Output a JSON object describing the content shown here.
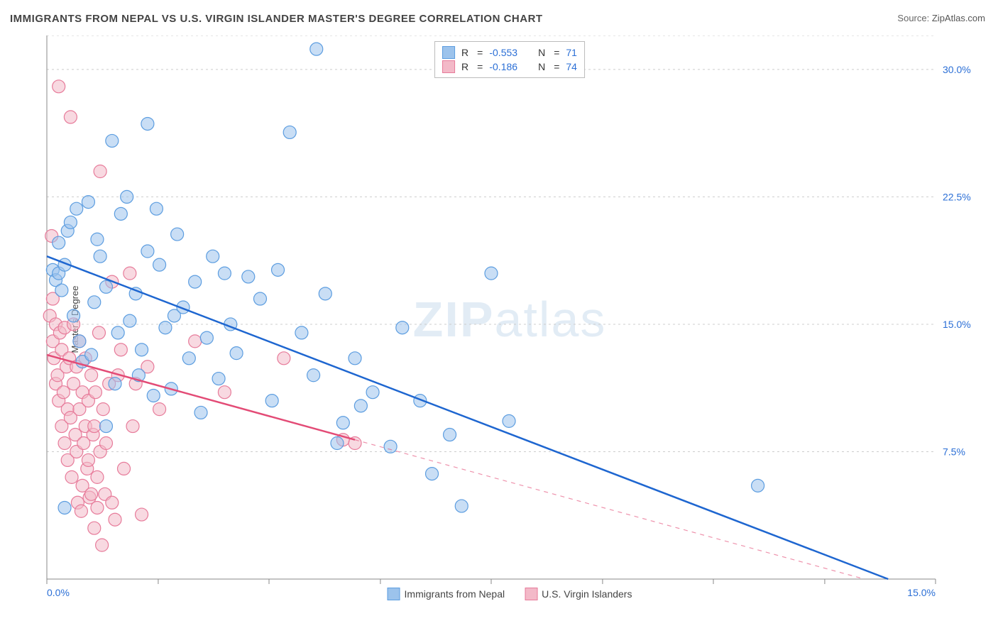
{
  "title": "IMMIGRANTS FROM NEPAL VS U.S. VIRGIN ISLANDER MASTER'S DEGREE CORRELATION CHART",
  "source_label": "Source:",
  "source_value": "ZipAtlas.com",
  "ylabel": "Master's Degree",
  "watermark_bold": "ZIP",
  "watermark_rest": "atlas",
  "chart": {
    "type": "scatter",
    "background_color": "#ffffff",
    "grid_color": "#cccccc",
    "axis_color": "#888888",
    "tick_color": "#888888",
    "xlim": [
      0,
      15
    ],
    "ylim": [
      0,
      32
    ],
    "x_ticks": [
      0.0,
      1.88,
      3.75,
      5.63,
      7.5,
      9.38,
      11.25,
      13.13,
      15.0
    ],
    "x_tick_labels_shown": {
      "0": "0.0%",
      "15": "15.0%"
    },
    "y_ticks": [
      7.5,
      15.0,
      22.5,
      30.0
    ],
    "y_tick_labels": [
      "7.5%",
      "15.0%",
      "22.5%",
      "30.0%"
    ],
    "x_label_color": "#2b6fd6",
    "y_label_color": "#2b6fd6",
    "label_fontsize": 14,
    "point_radius": 9,
    "point_opacity": 0.55,
    "line_width": 2.5,
    "series": [
      {
        "name": "Immigrants from Nepal",
        "color_fill": "#9cc3ec",
        "color_stroke": "#5c9de0",
        "line_color": "#1e66d0",
        "R": "-0.553",
        "N": "71",
        "regression": {
          "x1": 0,
          "y1": 19.0,
          "x2": 14.2,
          "y2": 0.0
        },
        "dashed_ext": null,
        "points": [
          [
            0.1,
            18.2
          ],
          [
            0.15,
            17.6
          ],
          [
            0.2,
            18.0
          ],
          [
            0.2,
            19.8
          ],
          [
            0.25,
            17.0
          ],
          [
            0.3,
            18.5
          ],
          [
            0.3,
            4.2
          ],
          [
            0.35,
            20.5
          ],
          [
            0.4,
            21.0
          ],
          [
            0.45,
            15.5
          ],
          [
            0.5,
            21.8
          ],
          [
            0.55,
            14.0
          ],
          [
            0.6,
            12.8
          ],
          [
            0.7,
            22.2
          ],
          [
            0.75,
            13.2
          ],
          [
            0.8,
            16.3
          ],
          [
            0.85,
            20.0
          ],
          [
            0.9,
            19.0
          ],
          [
            1.0,
            17.2
          ],
          [
            1.0,
            9.0
          ],
          [
            1.1,
            25.8
          ],
          [
            1.15,
            11.5
          ],
          [
            1.2,
            14.5
          ],
          [
            1.25,
            21.5
          ],
          [
            1.35,
            22.5
          ],
          [
            1.4,
            15.2
          ],
          [
            1.5,
            16.8
          ],
          [
            1.55,
            12.0
          ],
          [
            1.6,
            13.5
          ],
          [
            1.7,
            19.3
          ],
          [
            1.7,
            26.8
          ],
          [
            1.8,
            10.8
          ],
          [
            1.85,
            21.8
          ],
          [
            1.9,
            18.5
          ],
          [
            2.0,
            14.8
          ],
          [
            2.1,
            11.2
          ],
          [
            2.15,
            15.5
          ],
          [
            2.2,
            20.3
          ],
          [
            2.3,
            16.0
          ],
          [
            2.4,
            13.0
          ],
          [
            2.5,
            17.5
          ],
          [
            2.6,
            9.8
          ],
          [
            2.7,
            14.2
          ],
          [
            2.8,
            19.0
          ],
          [
            2.9,
            11.8
          ],
          [
            3.0,
            18.0
          ],
          [
            3.1,
            15.0
          ],
          [
            3.2,
            13.3
          ],
          [
            3.4,
            17.8
          ],
          [
            3.6,
            16.5
          ],
          [
            3.8,
            10.5
          ],
          [
            3.9,
            18.2
          ],
          [
            4.1,
            26.3
          ],
          [
            4.3,
            14.5
          ],
          [
            4.5,
            12.0
          ],
          [
            4.55,
            31.2
          ],
          [
            4.7,
            16.8
          ],
          [
            4.9,
            8.0
          ],
          [
            5.0,
            9.2
          ],
          [
            5.2,
            13.0
          ],
          [
            5.3,
            10.2
          ],
          [
            5.5,
            11.0
          ],
          [
            5.8,
            7.8
          ],
          [
            6.0,
            14.8
          ],
          [
            6.3,
            10.5
          ],
          [
            6.5,
            6.2
          ],
          [
            6.8,
            8.5
          ],
          [
            7.0,
            4.3
          ],
          [
            7.5,
            18.0
          ],
          [
            7.8,
            9.3
          ],
          [
            12.0,
            5.5
          ]
        ]
      },
      {
        "name": "U.S. Virgin Islanders",
        "color_fill": "#f3b9c8",
        "color_stroke": "#e77b9a",
        "line_color": "#e34b76",
        "R": "-0.186",
        "N": "74",
        "regression": {
          "x1": 0,
          "y1": 13.2,
          "x2": 5.2,
          "y2": 8.2
        },
        "dashed_ext": {
          "x1": 5.2,
          "y1": 8.2,
          "x2": 13.8,
          "y2": 0.0
        },
        "points": [
          [
            0.05,
            15.5
          ],
          [
            0.08,
            20.2
          ],
          [
            0.1,
            16.5
          ],
          [
            0.1,
            14.0
          ],
          [
            0.12,
            13.0
          ],
          [
            0.15,
            15.0
          ],
          [
            0.15,
            11.5
          ],
          [
            0.18,
            12.0
          ],
          [
            0.2,
            29.0
          ],
          [
            0.2,
            10.5
          ],
          [
            0.22,
            14.5
          ],
          [
            0.25,
            13.5
          ],
          [
            0.25,
            9.0
          ],
          [
            0.28,
            11.0
          ],
          [
            0.3,
            14.8
          ],
          [
            0.3,
            8.0
          ],
          [
            0.33,
            12.5
          ],
          [
            0.35,
            7.0
          ],
          [
            0.35,
            10.0
          ],
          [
            0.38,
            13.0
          ],
          [
            0.4,
            27.2
          ],
          [
            0.4,
            9.5
          ],
          [
            0.42,
            6.0
          ],
          [
            0.45,
            15.0
          ],
          [
            0.45,
            11.5
          ],
          [
            0.48,
            8.5
          ],
          [
            0.5,
            7.5
          ],
          [
            0.5,
            12.5
          ],
          [
            0.52,
            4.5
          ],
          [
            0.55,
            10.0
          ],
          [
            0.55,
            14.0
          ],
          [
            0.58,
            4.0
          ],
          [
            0.6,
            11.0
          ],
          [
            0.6,
            5.5
          ],
          [
            0.62,
            8.0
          ],
          [
            0.65,
            9.0
          ],
          [
            0.65,
            13.0
          ],
          [
            0.68,
            6.5
          ],
          [
            0.7,
            7.0
          ],
          [
            0.7,
            10.5
          ],
          [
            0.72,
            4.8
          ],
          [
            0.75,
            12.0
          ],
          [
            0.75,
            5.0
          ],
          [
            0.78,
            8.5
          ],
          [
            0.8,
            3.0
          ],
          [
            0.8,
            9.0
          ],
          [
            0.82,
            11.0
          ],
          [
            0.85,
            6.0
          ],
          [
            0.85,
            4.2
          ],
          [
            0.88,
            14.5
          ],
          [
            0.9,
            24.0
          ],
          [
            0.9,
            7.5
          ],
          [
            0.93,
            2.0
          ],
          [
            0.95,
            10.0
          ],
          [
            0.98,
            5.0
          ],
          [
            1.0,
            8.0
          ],
          [
            1.05,
            11.5
          ],
          [
            1.1,
            17.5
          ],
          [
            1.1,
            4.5
          ],
          [
            1.15,
            3.5
          ],
          [
            1.2,
            12.0
          ],
          [
            1.25,
            13.5
          ],
          [
            1.3,
            6.5
          ],
          [
            1.4,
            18.0
          ],
          [
            1.45,
            9.0
          ],
          [
            1.5,
            11.5
          ],
          [
            1.6,
            3.8
          ],
          [
            1.7,
            12.5
          ],
          [
            1.9,
            10.0
          ],
          [
            2.5,
            14.0
          ],
          [
            3.0,
            11.0
          ],
          [
            4.0,
            13.0
          ],
          [
            5.0,
            8.2
          ],
          [
            5.2,
            8.0
          ]
        ]
      }
    ]
  },
  "legend_top": {
    "r_label": "R",
    "n_label": "N",
    "eq": "="
  },
  "legend_bottom": [
    {
      "label": "Immigrants from Nepal",
      "fill": "#9cc3ec",
      "stroke": "#5c9de0"
    },
    {
      "label": "U.S. Virgin Islanders",
      "fill": "#f3b9c8",
      "stroke": "#e77b9a"
    }
  ]
}
